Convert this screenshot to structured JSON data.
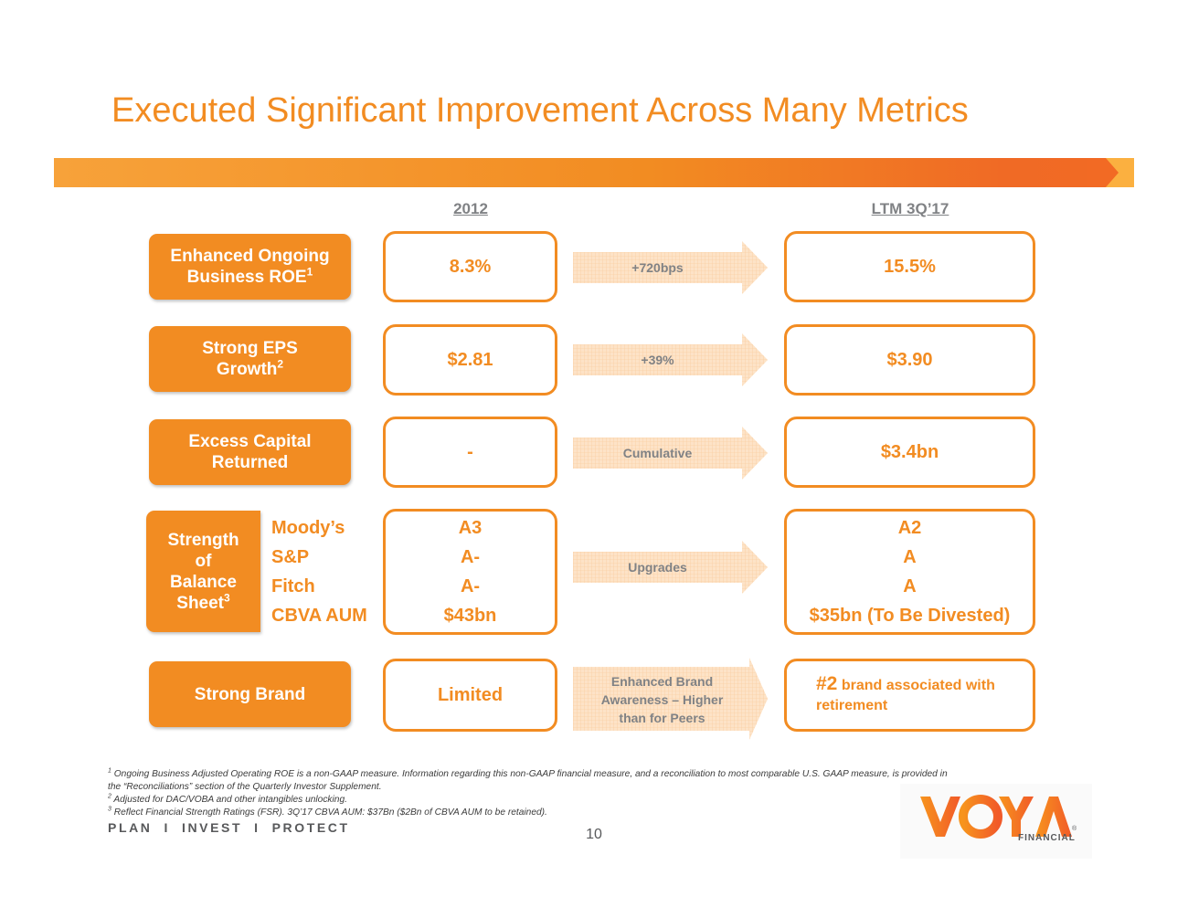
{
  "title": "Executed Significant Improvement Across Many Metrics",
  "columns": {
    "left": "2012",
    "right": "LTM 3Q’17"
  },
  "rows": [
    {
      "label_lines": [
        "Enhanced Ongoing",
        "Business ROE"
      ],
      "label_sup": "1",
      "value_2012": "8.3%",
      "arrow": "+720bps",
      "value_ltm": "15.5%"
    },
    {
      "label_lines": [
        "Strong EPS",
        "Growth"
      ],
      "label_sup": "2",
      "value_2012": "$2.81",
      "arrow": "+39%",
      "value_ltm": "$3.90"
    },
    {
      "label_lines": [
        "Excess Capital",
        "Returned"
      ],
      "value_2012": "-",
      "arrow": "Cumulative",
      "value_ltm": "$3.4bn"
    }
  ],
  "balance": {
    "label_lines": [
      "Strength",
      "of",
      "Balance",
      "Sheet"
    ],
    "label_sup": "3",
    "arrow": "Upgrades",
    "items": [
      {
        "name": "Moody’s",
        "value_2012": "A3",
        "value_ltm": "A2"
      },
      {
        "name": "S&P",
        "value_2012": "A-",
        "value_ltm": "A"
      },
      {
        "name": "Fitch",
        "value_2012": "A-",
        "value_ltm": "A"
      },
      {
        "name": "CBVA AUM",
        "value_2012": "$43bn",
        "value_ltm": "$35bn (To Be Divested)"
      }
    ]
  },
  "brand": {
    "label": "Strong Brand",
    "value_2012": "Limited",
    "arrow_lines": [
      "Enhanced Brand",
      "Awareness – Higher",
      "than for Peers"
    ],
    "value_ltm_big": "#2",
    "value_ltm_rest": "brand associated with",
    "value_ltm_line2": "retirement"
  },
  "footnotes": [
    {
      "sup": "1",
      "text": "Ongoing Business Adjusted Operating ROE is a non-GAAP measure. Information regarding this non-GAAP financial measure, and a reconciliation to most comparable U.S. GAAP measure, is provided in"
    },
    {
      "sup": "",
      "text": "the “Reconciliations” section of the Quarterly Investor Supplement."
    },
    {
      "sup": "2",
      "text": "Adjusted for DAC/VOBA and other intangibles unlocking."
    },
    {
      "sup": "3",
      "text": "Reflect Financial Strength Ratings (FSR). 3Q’17 CBVA AUM: $37Bn ($2Bn of CBVA AUM to be retained)."
    }
  ],
  "tagline": "PLAN  I  INVEST  I  PROTECT",
  "page_number": "10",
  "logo": {
    "wordmark": "VOYA",
    "sub": "FINANCIAL",
    "reg": "®"
  },
  "colors": {
    "orange": "#f28c22",
    "gray": "#808285",
    "arrow_fill": "#fde3c7"
  }
}
